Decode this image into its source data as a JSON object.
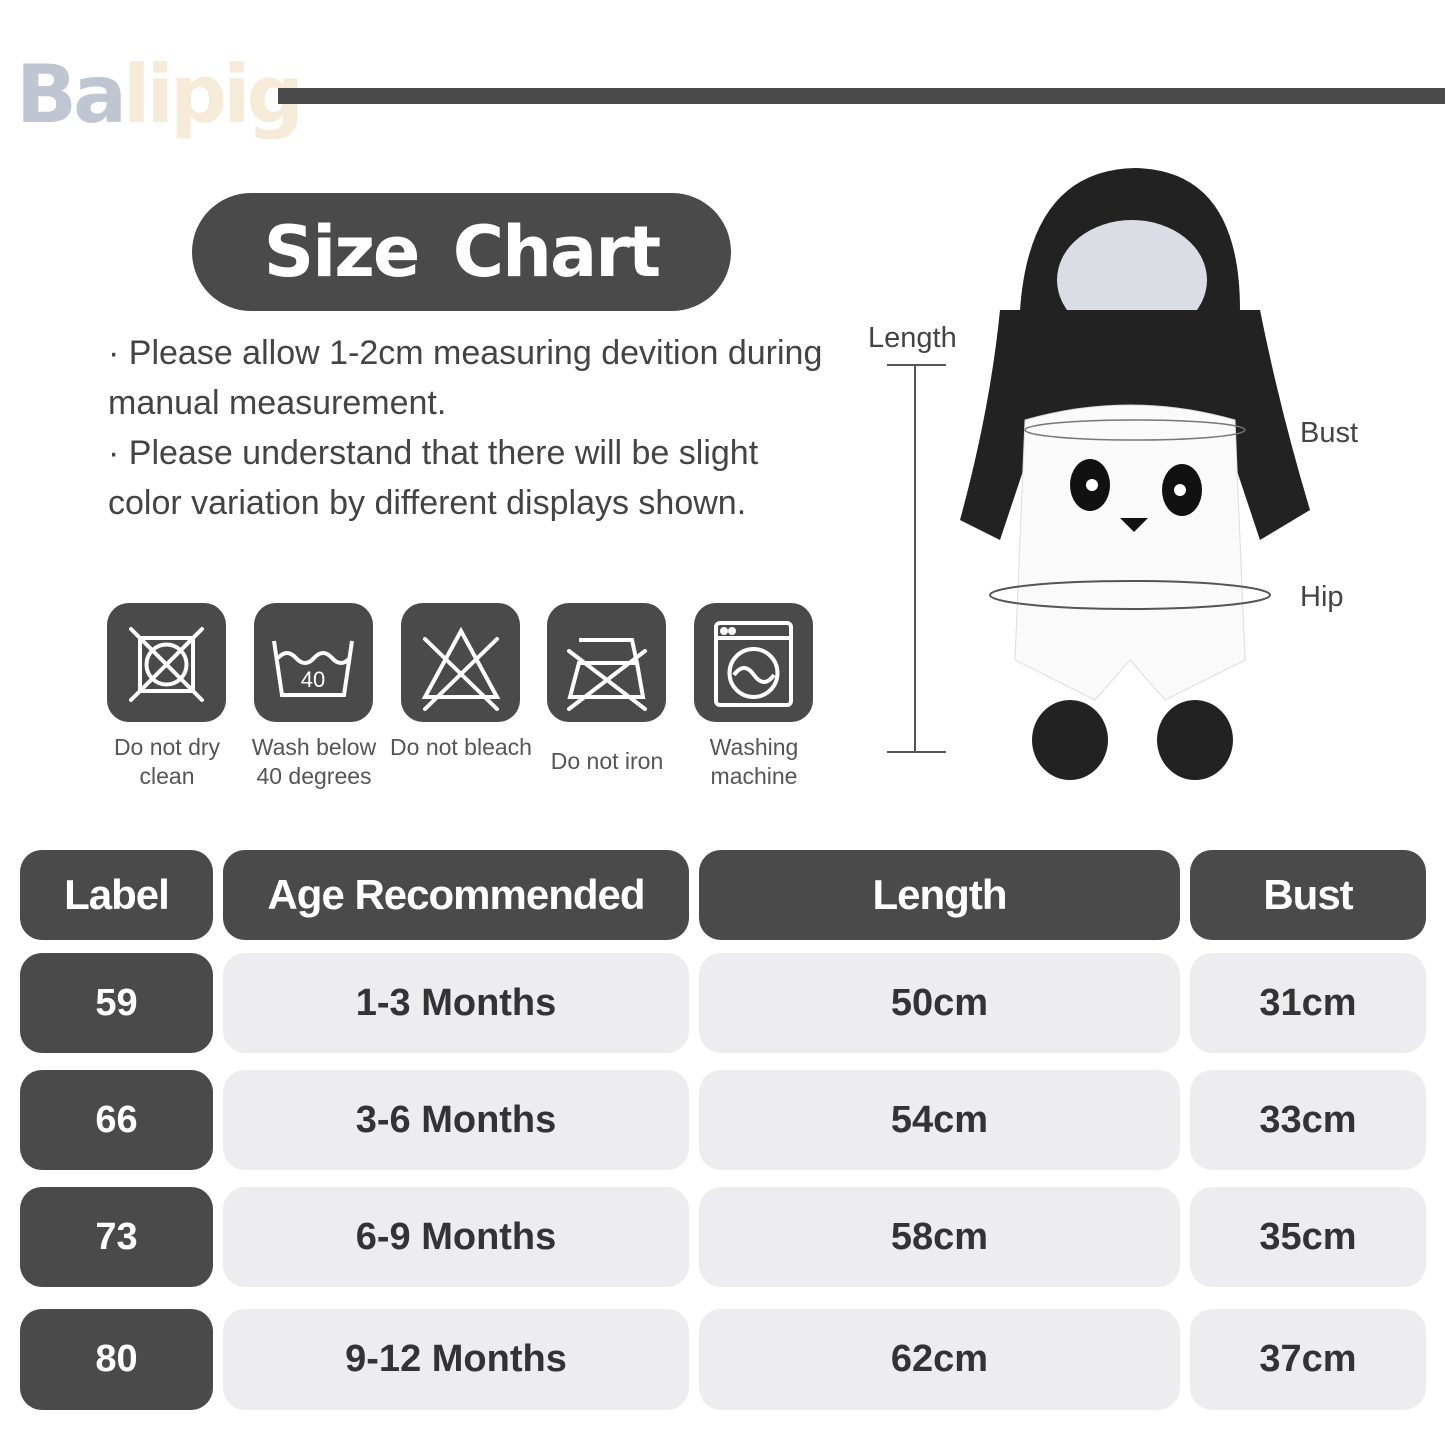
{
  "brand": {
    "logo_text_1": "Ba",
    "logo_text_2": "lipig"
  },
  "title": "Size  Chart",
  "notes": [
    "· Please allow 1-2cm measuring devition during manual measurement.",
    "· Please understand that there will be slight color variation by different displays shown."
  ],
  "care": [
    {
      "icon": "no-dry-clean-icon",
      "label": "Do not dry clean"
    },
    {
      "icon": "wash-40-icon",
      "label": "Wash below 40 degrees",
      "value": "40"
    },
    {
      "icon": "no-bleach-icon",
      "label": "Do not bleach"
    },
    {
      "icon": "no-iron-icon",
      "label": "Do not iron"
    },
    {
      "icon": "washing-machine-icon",
      "label": "Washing machine"
    }
  ],
  "diagram": {
    "length": "Length",
    "bust": "Bust",
    "hip": "Hip"
  },
  "table": {
    "headers": [
      "Label",
      "Age Recommended",
      "Length",
      "Bust"
    ],
    "rows": [
      [
        "59",
        "1-3 Months",
        "50cm",
        "31cm"
      ],
      [
        "66",
        "3-6 Months",
        "54cm",
        "33cm"
      ],
      [
        "73",
        "6-9 Months",
        "58cm",
        "35cm"
      ],
      [
        "80",
        "9-12 Months",
        "62cm",
        "37cm"
      ]
    ]
  },
  "colors": {
    "dark": "#4a4a4a",
    "light": "#ededf0"
  }
}
